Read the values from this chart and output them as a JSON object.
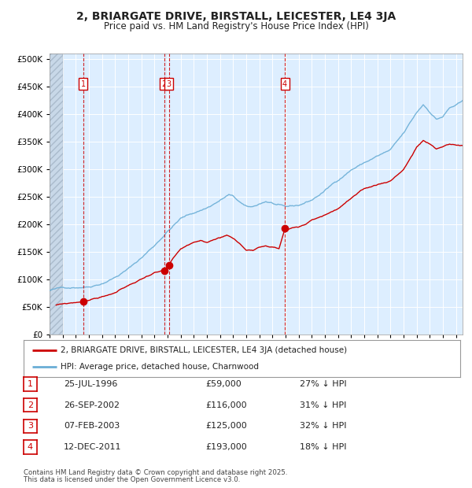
{
  "title": "2, BRIARGATE DRIVE, BIRSTALL, LEICESTER, LE4 3JA",
  "subtitle": "Price paid vs. HM Land Registry's House Price Index (HPI)",
  "title_fontsize": 10,
  "subtitle_fontsize": 8.5,
  "hpi_color": "#6aaed6",
  "price_color": "#CC0000",
  "background_color": "#ddeeff",
  "grid_color": "#FFFFFF",
  "legend_items": [
    {
      "label": "2, BRIARGATE DRIVE, BIRSTALL, LEICESTER, LE4 3JA (detached house)",
      "color": "#CC0000"
    },
    {
      "label": "HPI: Average price, detached house, Charnwood",
      "color": "#6aaed6"
    }
  ],
  "transactions": [
    {
      "num": 1,
      "date": "25-JUL-1996",
      "price": 59000,
      "pct": "27%",
      "x_year": 1996.556
    },
    {
      "num": 2,
      "date": "26-SEP-2002",
      "price": 116000,
      "pct": "31%",
      "x_year": 2002.736
    },
    {
      "num": 3,
      "date": "07-FEB-2003",
      "price": 125000,
      "pct": "32%",
      "x_year": 2003.097
    },
    {
      "num": 4,
      "date": "12-DEC-2011",
      "price": 193000,
      "pct": "18%",
      "x_year": 2011.944
    }
  ],
  "footnote1": "Contains HM Land Registry data © Crown copyright and database right 2025.",
  "footnote2": "This data is licensed under the Open Government Licence v3.0.",
  "xmin": 1994.0,
  "xmax": 2025.5,
  "ylim": [
    0,
    510000
  ],
  "yticks": [
    0,
    50000,
    100000,
    150000,
    200000,
    250000,
    300000,
    350000,
    400000,
    450000,
    500000
  ],
  "ytick_labels": [
    "£0",
    "£50K",
    "£100K",
    "£150K",
    "£200K",
    "£250K",
    "£300K",
    "£350K",
    "£400K",
    "£450K",
    "£500K"
  ],
  "hpi_keypoints": [
    [
      1994.0,
      80000
    ],
    [
      1995.0,
      84000
    ],
    [
      1996.0,
      87000
    ],
    [
      1997.0,
      90000
    ],
    [
      1998.0,
      98000
    ],
    [
      1999.0,
      110000
    ],
    [
      2000.0,
      125000
    ],
    [
      2001.0,
      145000
    ],
    [
      2002.0,
      168000
    ],
    [
      2003.0,
      195000
    ],
    [
      2004.0,
      218000
    ],
    [
      2005.0,
      228000
    ],
    [
      2006.0,
      238000
    ],
    [
      2007.0,
      252000
    ],
    [
      2007.67,
      262000
    ],
    [
      2008.0,
      258000
    ],
    [
      2008.5,
      248000
    ],
    [
      2009.0,
      238000
    ],
    [
      2009.5,
      237000
    ],
    [
      2010.0,
      243000
    ],
    [
      2010.5,
      248000
    ],
    [
      2011.0,
      245000
    ],
    [
      2011.5,
      240000
    ],
    [
      2012.0,
      235000
    ],
    [
      2013.0,
      238000
    ],
    [
      2014.0,
      248000
    ],
    [
      2015.0,
      265000
    ],
    [
      2016.0,
      285000
    ],
    [
      2017.0,
      305000
    ],
    [
      2018.0,
      318000
    ],
    [
      2019.0,
      330000
    ],
    [
      2020.0,
      340000
    ],
    [
      2021.0,
      368000
    ],
    [
      2022.0,
      405000
    ],
    [
      2022.5,
      420000
    ],
    [
      2023.0,
      408000
    ],
    [
      2023.5,
      395000
    ],
    [
      2024.0,
      400000
    ],
    [
      2024.5,
      415000
    ],
    [
      2025.0,
      420000
    ],
    [
      2025.5,
      425000
    ]
  ],
  "price_keypoints": [
    [
      1994.5,
      53000
    ],
    [
      1995.0,
      54000
    ],
    [
      1996.0,
      57000
    ],
    [
      1996.556,
      59000
    ],
    [
      1997.0,
      62000
    ],
    [
      1998.0,
      68000
    ],
    [
      1999.0,
      76000
    ],
    [
      2000.0,
      88000
    ],
    [
      2001.0,
      100000
    ],
    [
      2002.0,
      113000
    ],
    [
      2002.736,
      116000
    ],
    [
      2003.097,
      125000
    ],
    [
      2003.5,
      138000
    ],
    [
      2004.0,
      152000
    ],
    [
      2004.5,
      158000
    ],
    [
      2005.0,
      162000
    ],
    [
      2005.5,
      165000
    ],
    [
      2006.0,
      162000
    ],
    [
      2006.5,
      168000
    ],
    [
      2007.0,
      172000
    ],
    [
      2007.5,
      178000
    ],
    [
      2008.0,
      172000
    ],
    [
      2008.5,
      162000
    ],
    [
      2009.0,
      150000
    ],
    [
      2009.5,
      152000
    ],
    [
      2010.0,
      158000
    ],
    [
      2010.5,
      162000
    ],
    [
      2011.0,
      160000
    ],
    [
      2011.5,
      157000
    ],
    [
      2011.944,
      193000
    ],
    [
      2012.0,
      192000
    ],
    [
      2012.5,
      195000
    ],
    [
      2013.0,
      196000
    ],
    [
      2013.5,
      200000
    ],
    [
      2014.0,
      208000
    ],
    [
      2015.0,
      218000
    ],
    [
      2016.0,
      230000
    ],
    [
      2017.0,
      248000
    ],
    [
      2018.0,
      262000
    ],
    [
      2019.0,
      270000
    ],
    [
      2020.0,
      278000
    ],
    [
      2021.0,
      300000
    ],
    [
      2022.0,
      340000
    ],
    [
      2022.5,
      352000
    ],
    [
      2023.0,
      345000
    ],
    [
      2023.5,
      335000
    ],
    [
      2024.0,
      340000
    ],
    [
      2024.5,
      345000
    ],
    [
      2025.0,
      343000
    ]
  ]
}
